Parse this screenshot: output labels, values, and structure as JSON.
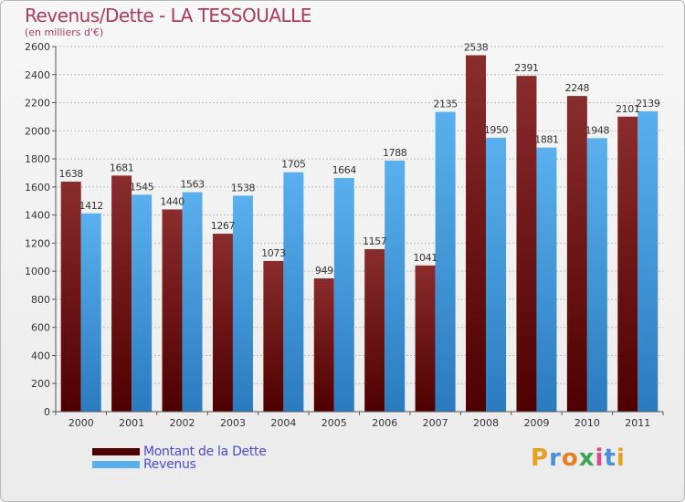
{
  "header": {
    "title": "Revenus/Dette - LA TESSOUALLE",
    "subtitle": "(en milliers d'€)"
  },
  "legend": {
    "dette_label": "Montant de la Dette",
    "revenus_label": "Revenus"
  },
  "logo": {
    "letters": [
      "P",
      "r",
      "o",
      "x",
      "i",
      "t",
      "i"
    ],
    "colors": [
      "#e6a01e",
      "#4a90d9",
      "#e67e22",
      "#3aa655",
      "#d94a8c",
      "#4a90d9",
      "#e6a01e"
    ]
  },
  "colors": {
    "dette_dark": "#4e0000",
    "dette_light": "#8a2c2c",
    "revenus_dark": "#2a7bbf",
    "revenus_light": "#5ab0ee",
    "grid": "#bdbdbd",
    "axis_text": "#333333"
  },
  "chart_data": {
    "type": "bar",
    "categories": [
      "2000",
      "2001",
      "2002",
      "2003",
      "2004",
      "2005",
      "2006",
      "2007",
      "2008",
      "2009",
      "2010",
      "2011"
    ],
    "series": [
      {
        "name": "Montant de la Dette",
        "values": [
          1638,
          1681,
          1440,
          1267,
          1073,
          949,
          1157,
          1041,
          2538,
          2391,
          2248,
          2101
        ]
      },
      {
        "name": "Revenus",
        "values": [
          1412,
          1545,
          1563,
          1538,
          1705,
          1664,
          1788,
          2135,
          1950,
          1881,
          1948,
          2139
        ]
      }
    ],
    "data_labels": [
      [
        "1638",
        "1681",
        "1440",
        "1267",
        "1073",
        "949",
        "1157",
        "1041",
        "2538",
        "2391",
        "2248",
        "2101"
      ],
      [
        "1412",
        "1545",
        "1563",
        "1538",
        "1705",
        "1664",
        "1788",
        "2135",
        "1950",
        "1881",
        "1948",
        "2139"
      ]
    ],
    "yticks": [
      0,
      200,
      400,
      600,
      800,
      1000,
      1200,
      1400,
      1600,
      1800,
      2000,
      2200,
      2400,
      2600
    ],
    "ylim": [
      0,
      2600
    ],
    "grid": true,
    "legend_position": "bottom-left"
  }
}
